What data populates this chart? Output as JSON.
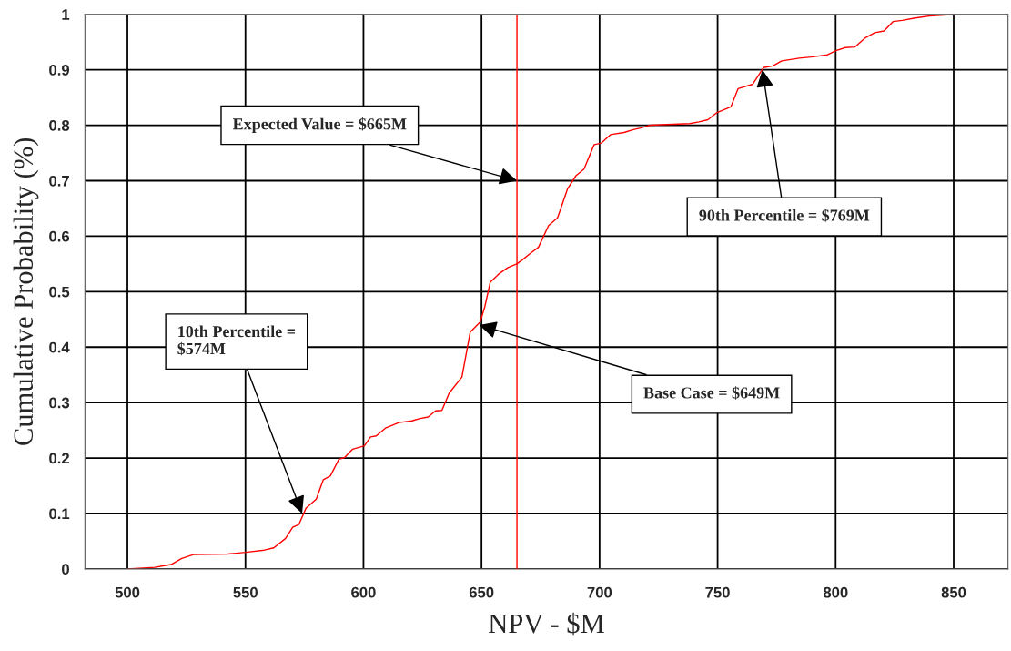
{
  "chart_data": {
    "type": "line",
    "xlabel": "NPV - $M",
    "ylabel": "Cumulative Probability (%)",
    "series": [
      {
        "color": "#ff0000",
        "x": [
          500,
          511.6,
          518.5,
          523,
          528,
          542.5,
          550,
          558,
          562,
          567,
          570,
          572.6,
          575.7,
          580,
          583,
          586,
          589.6,
          592,
          595.4,
          600.4,
          603,
          605.4,
          609.3,
          615,
          620.5,
          623.6,
          627.4,
          630.5,
          633.2,
          636.3,
          641.7,
          645.2,
          649.4,
          651.4,
          653.7,
          657.1,
          661,
          664.9,
          667.2,
          670.7,
          674.1,
          678.4,
          682.2,
          686.5,
          690,
          693.4,
          697.7,
          700.8,
          704.6,
          710.4,
          714.3,
          717.4,
          721.2,
          738.2,
          742.1,
          745.9,
          749.8,
          755.6,
          758.7,
          764.9,
          769.5,
          773.4,
          777.2,
          784.6,
          789.6,
          796.5,
          800.4,
          804.2,
          808.1,
          812.7,
          816.6,
          820.5,
          824.3,
          828.2,
          833.2,
          839.8,
          850.2
        ],
        "values": [
          0,
          0.003,
          0.008,
          0.019,
          0.026,
          0.027,
          0.03,
          0.034,
          0.038,
          0.055,
          0.075,
          0.08,
          0.11,
          0.126,
          0.161,
          0.168,
          0.198,
          0.201,
          0.216,
          0.222,
          0.238,
          0.24,
          0.254,
          0.264,
          0.267,
          0.271,
          0.274,
          0.285,
          0.286,
          0.317,
          0.346,
          0.427,
          0.445,
          0.473,
          0.517,
          0.531,
          0.543,
          0.55,
          0.557,
          0.569,
          0.58,
          0.619,
          0.633,
          0.686,
          0.709,
          0.721,
          0.765,
          0.768,
          0.783,
          0.787,
          0.792,
          0.795,
          0.8,
          0.803,
          0.806,
          0.81,
          0.823,
          0.833,
          0.866,
          0.874,
          0.904,
          0.907,
          0.916,
          0.921,
          0.923,
          0.927,
          0.935,
          0.94,
          0.941,
          0.958,
          0.967,
          0.97,
          0.987,
          0.989,
          0.993,
          0.997,
          1.0
        ]
      }
    ],
    "xlim": [
      482,
      873
    ],
    "xticks": [
      500,
      550,
      600,
      650,
      700,
      750,
      800,
      850
    ],
    "ylim": [
      0,
      1
    ],
    "yticks": [
      0,
      0.1,
      0.2,
      0.3,
      0.4,
      0.5,
      0.6,
      0.7,
      0.8,
      0.9,
      1
    ],
    "grid": true,
    "legend": false,
    "ref_lines": [
      {
        "axis": "x",
        "value": 665,
        "color": "#ff0000"
      }
    ],
    "annotations": [
      {
        "text": "Expected Value = $665M",
        "x": 665,
        "y": 0.7
      },
      {
        "text": "10th Percentile =\n$574M",
        "x": 574,
        "y": 0.1
      },
      {
        "text": "Base Case = $649M",
        "x": 649,
        "y": 0.44
      },
      {
        "text": "90th Percentile = $769M",
        "x": 769,
        "y": 0.9
      }
    ]
  }
}
